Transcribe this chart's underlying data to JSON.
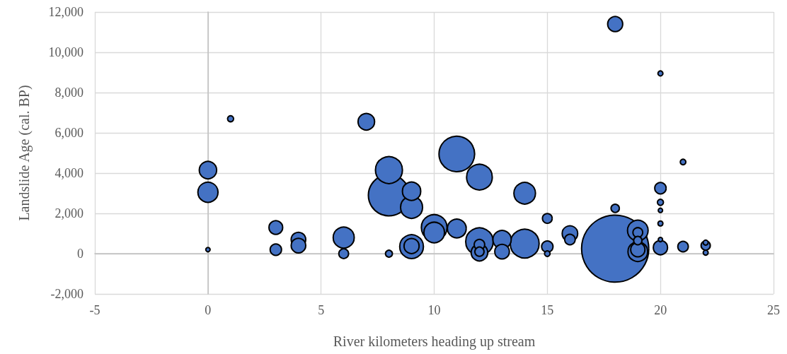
{
  "chart_data": {
    "type": "bubble",
    "xlabel": "River kilometers heading up stream",
    "ylabel": "Landslide Age (cal. BP)",
    "x": [
      18,
      8,
      11,
      14,
      12,
      8,
      10,
      12,
      9,
      9,
      14,
      6,
      10,
      19,
      0,
      19,
      11,
      9,
      13,
      0,
      7,
      12,
      16,
      18,
      9,
      4,
      4,
      13,
      20,
      19,
      3,
      3,
      15,
      20,
      12,
      16,
      21,
      6,
      15,
      19,
      12,
      22,
      18,
      19,
      8,
      1,
      20,
      15,
      21,
      20,
      20,
      22,
      22,
      0,
      20,
      20
    ],
    "values": [
      250,
      2900,
      4950,
      500,
      600,
      4150,
      1300,
      3800,
      350,
      2300,
      3000,
      800,
      1050,
      1150,
      3050,
      100,
      1250,
      3100,
      700,
      4150,
      6550,
      50,
      1000,
      11400,
      380,
      700,
      400,
      100,
      300,
      200,
      1300,
      200,
      350,
      3250,
      450,
      700,
      350,
      0,
      1750,
      1050,
      100,
      400,
      2250,
      650,
      0,
      6700,
      2550,
      0,
      4550,
      8950,
      1500,
      550,
      50,
      200,
      2150,
      700
    ],
    "sizes": [
      1,
      0.365,
      0.271,
      0.174,
      0.157,
      0.151,
      0.136,
      0.136,
      0.115,
      0.098,
      0.094,
      0.089,
      0.085,
      0.085,
      0.081,
      0.077,
      0.07,
      0.066,
      0.066,
      0.059,
      0.053,
      0.053,
      0.046,
      0.043,
      0.043,
      0.04,
      0.04,
      0.04,
      0.038,
      0.038,
      0.035,
      0.023,
      0.023,
      0.023,
      0.019,
      0.019,
      0.019,
      0.016,
      0.016,
      0.016,
      0.014,
      0.014,
      0.011,
      0.011,
      0.007,
      0.005,
      0.005,
      0.004,
      0.004,
      0.003,
      0.003,
      0.003,
      0.003,
      0.002,
      0.002,
      0.002
    ],
    "color": "#4472c4",
    "marker": "circle",
    "xlim": [
      -5,
      25
    ],
    "xticks": [
      -5,
      0,
      5,
      10,
      15,
      20,
      25
    ],
    "ylim": [
      -2000,
      12000
    ],
    "yticks": [
      {
        "value": -2000,
        "label": "-2,000"
      },
      0,
      {
        "value": 2000,
        "label": "2,000"
      },
      {
        "value": 4000,
        "label": "4,000"
      },
      {
        "value": 6000,
        "label": "6,000"
      },
      {
        "value": 8000,
        "label": "8,000"
      },
      {
        "value": 10000,
        "label": "10,000"
      },
      {
        "value": 12000,
        "label": "12,000"
      }
    ],
    "grid": true
  }
}
